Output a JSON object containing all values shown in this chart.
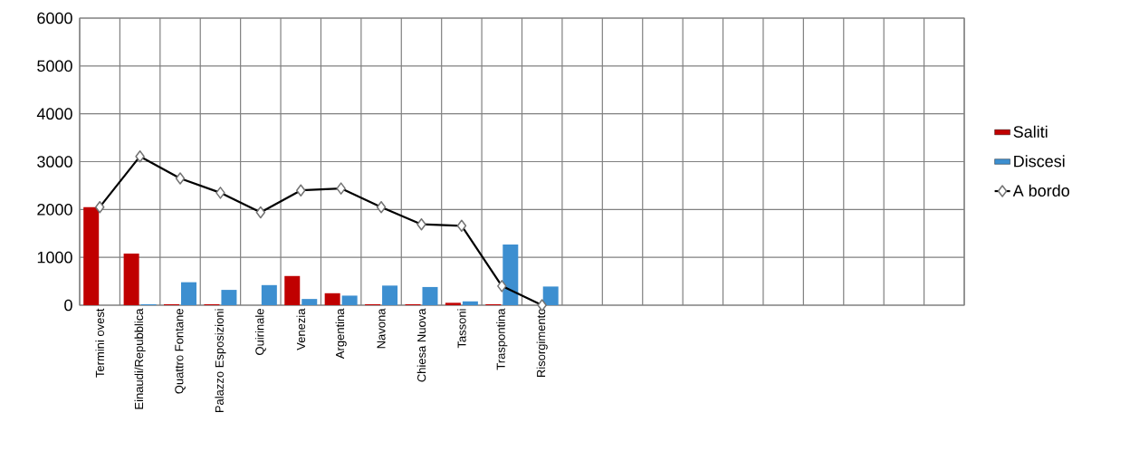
{
  "chart_data": {
    "type": "bar",
    "categories": [
      "Termini ovest",
      "Einaudi/Repubblica",
      "Quattro Fontane",
      "Palazzo Esposizioni",
      "Quirinale",
      "Venezia",
      "Argentina",
      "Navona",
      "Chiesa Nuova",
      "Tassoni",
      "Traspontina",
      "Risorgimento",
      null,
      null,
      null,
      null,
      null,
      null,
      null,
      null,
      null,
      null
    ],
    "series": [
      {
        "name": "Saliti",
        "color": "#c00000",
        "values": [
          2050,
          1080,
          20,
          20,
          0,
          610,
          250,
          20,
          20,
          50,
          20,
          0,
          null,
          null,
          null,
          null,
          null,
          null,
          null,
          null,
          null,
          null
        ]
      },
      {
        "name": "Discesi",
        "color": "#3d8fd0",
        "values": [
          0,
          20,
          480,
          320,
          420,
          130,
          200,
          410,
          380,
          80,
          1270,
          390,
          null,
          null,
          null,
          null,
          null,
          null,
          null,
          null,
          null,
          null
        ]
      },
      {
        "name": "A bordo",
        "type": "line",
        "color": "#000000",
        "marker": "diamond",
        "values": [
          2050,
          3110,
          2650,
          2350,
          1940,
          2400,
          2440,
          2050,
          1690,
          1660,
          400,
          0,
          null,
          null,
          null,
          null,
          null,
          null,
          null,
          null,
          null,
          null
        ]
      }
    ],
    "ylim": [
      0,
      6000
    ],
    "yticks": [
      0,
      1000,
      2000,
      3000,
      4000,
      5000,
      6000
    ],
    "grid": true,
    "legend": "right"
  }
}
